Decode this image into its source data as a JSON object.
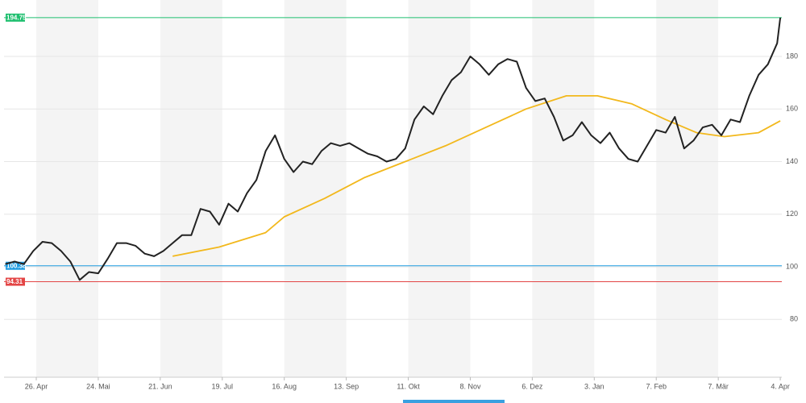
{
  "chart_data": {
    "type": "line",
    "xlim": [
      -10.4,
      240.5
    ],
    "xticks": [
      {
        "value": 0,
        "label": "26. Apr"
      },
      {
        "value": 20,
        "label": "24. Mai"
      },
      {
        "value": 40,
        "label": "21. Jun"
      },
      {
        "value": 60,
        "label": "19. Jul"
      },
      {
        "value": 80,
        "label": "16. Aug"
      },
      {
        "value": 100,
        "label": "13. Sep"
      },
      {
        "value": 120,
        "label": "11. Okt"
      },
      {
        "value": 140,
        "label": "8. Nov"
      },
      {
        "value": 160,
        "label": "6. Dez"
      },
      {
        "value": 180,
        "label": "3. Jan"
      },
      {
        "value": 200,
        "label": "7. Feb"
      },
      {
        "value": 220,
        "label": "7. Mär"
      },
      {
        "value": 240,
        "label": "4. Apr"
      }
    ],
    "ylim": [
      58,
      199
    ],
    "yticks": [
      80,
      100,
      120,
      140,
      160,
      180
    ],
    "grid": true,
    "levels": [
      {
        "value": 194.75,
        "color": "#1fbf6f"
      },
      {
        "value": 100.38,
        "color": "#1e9be0"
      },
      {
        "value": 94.31,
        "color": "#e34545"
      }
    ],
    "series": [
      {
        "color": "#222222",
        "x": [
          -10,
          -7,
          -4,
          -1,
          2,
          5,
          8,
          11,
          14,
          17,
          20,
          23,
          26,
          29,
          32,
          35,
          38,
          41,
          44,
          47,
          50,
          53,
          56,
          59,
          62,
          65,
          68,
          71,
          74,
          77,
          80,
          83,
          86,
          89,
          92,
          95,
          98,
          101,
          104,
          107,
          110,
          113,
          116,
          119,
          122,
          125,
          128,
          131,
          134,
          137,
          140,
          143,
          146,
          149,
          152,
          155,
          158,
          161,
          164,
          167,
          170,
          173,
          176,
          179,
          182,
          185,
          188,
          191,
          194,
          197,
          200,
          203,
          206,
          209,
          212,
          215,
          218,
          221,
          224,
          227,
          230,
          233,
          236,
          239,
          240
        ],
        "values": [
          101,
          102,
          101,
          106,
          109.5,
          109,
          106,
          102,
          95,
          98,
          97.5,
          103,
          109,
          109,
          108,
          105,
          104,
          106,
          109,
          112,
          112,
          122,
          121,
          116,
          124,
          121,
          128,
          133,
          144,
          150,
          141,
          136,
          140,
          139,
          144,
          147,
          146,
          147,
          145,
          143,
          142,
          140,
          141,
          145,
          156,
          161,
          158,
          165,
          171,
          174,
          180,
          177,
          173,
          177,
          179,
          178,
          168,
          163,
          164,
          157,
          148,
          150,
          155,
          150,
          147,
          151,
          145,
          141,
          140,
          146,
          152,
          151,
          157,
          145,
          148,
          153,
          154,
          150,
          156,
          155,
          165,
          173,
          177,
          185,
          194.75
        ]
      },
      {
        "color": "#f2b81c",
        "x": [
          44,
          59,
          74,
          80,
          93,
          106,
          119,
          132,
          145,
          158,
          171,
          181,
          192,
          203,
          213,
          222,
          233,
          240
        ],
        "values": [
          104,
          107.5,
          113,
          119,
          126,
          134,
          140,
          146,
          153,
          160,
          165,
          165,
          162,
          156,
          151,
          149.5,
          151,
          155.5
        ]
      }
    ]
  }
}
